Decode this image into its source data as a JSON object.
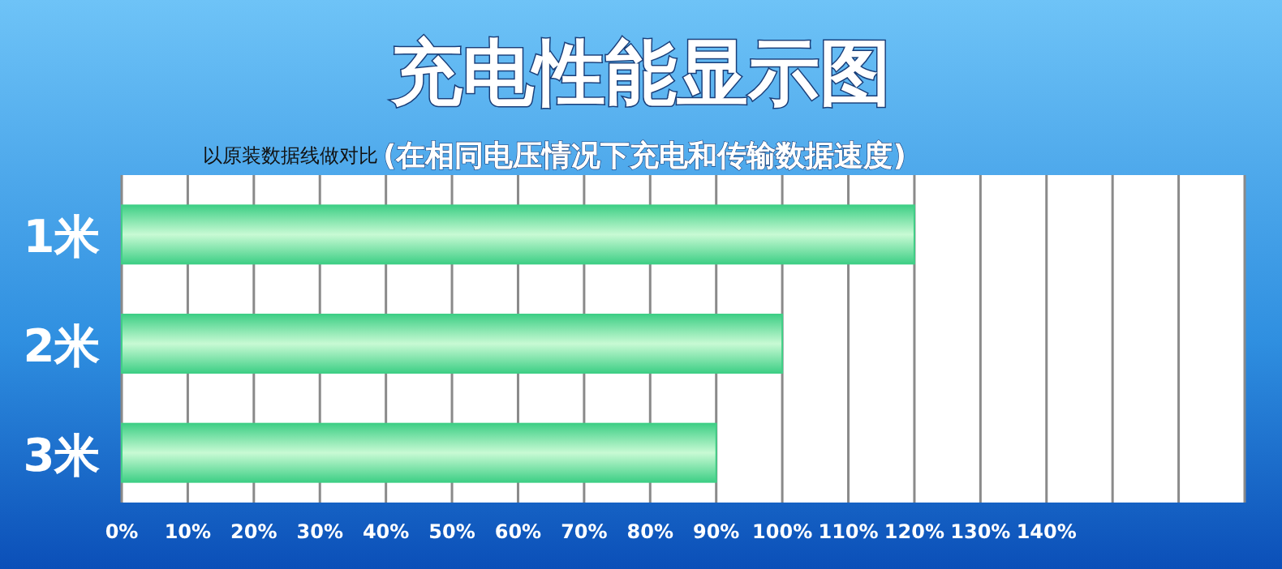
{
  "chart_data": {
    "type": "bar",
    "orientation": "horizontal",
    "title": "充电性能显示图",
    "subtitle": "以原装数据线做对比",
    "annotations": [
      "(在相同电压情况下充电和传输数据速度)"
    ],
    "categories": [
      "1米",
      "2米",
      "3米"
    ],
    "values": [
      120,
      100,
      90
    ],
    "color": "#3fcf86",
    "xlim": [
      0,
      170
    ],
    "xticks": [
      {
        "value": 0,
        "label": "0%"
      },
      {
        "value": 10,
        "label": "10%"
      },
      {
        "value": 20,
        "label": "20%"
      },
      {
        "value": 30,
        "label": "30%"
      },
      {
        "value": 40,
        "label": "40%"
      },
      {
        "value": 50,
        "label": "50%"
      },
      {
        "value": 60,
        "label": "60%"
      },
      {
        "value": 70,
        "label": "70%"
      },
      {
        "value": 80,
        "label": "80%"
      },
      {
        "value": 90,
        "label": "90%"
      },
      {
        "value": 100,
        "label": "100%"
      },
      {
        "value": 110,
        "label": "110%"
      },
      {
        "value": 120,
        "label": "120%"
      },
      {
        "value": 130,
        "label": "130%"
      },
      {
        "value": 140,
        "label": "140%"
      },
      {
        "value": 150,
        "label": null
      },
      {
        "value": 160,
        "label": null
      },
      {
        "value": 170,
        "label": null
      }
    ],
    "grid": "x"
  }
}
